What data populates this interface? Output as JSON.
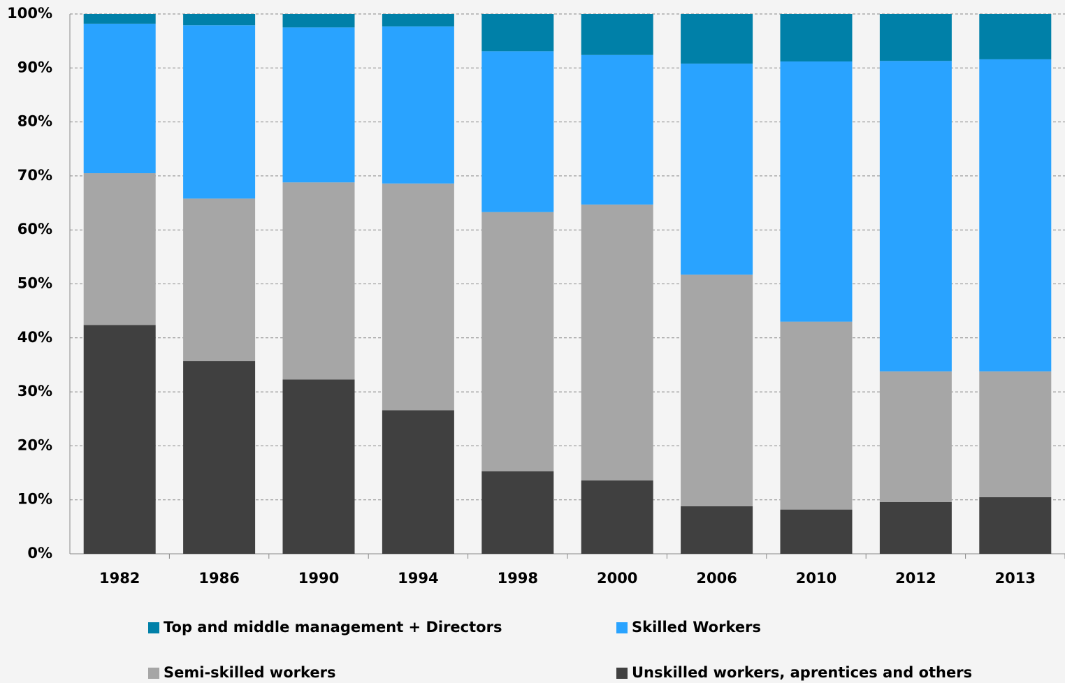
{
  "chart_data": {
    "type": "stacked_bar",
    "categories": [
      "1982",
      "1986",
      "1990",
      "1994",
      "1998",
      "2000",
      "2006",
      "2010",
      "2012",
      "2013"
    ],
    "series": [
      {
        "name": "Top and middle management + Directors",
        "color": "#0080a8",
        "values": [
          1.8,
          2.1,
          2.5,
          2.3,
          6.9,
          7.6,
          9.2,
          8.8,
          8.7,
          8.4
        ]
      },
      {
        "name": "Skilled Workers",
        "color": "#29a3ff",
        "values": [
          27.7,
          32.1,
          28.7,
          29.1,
          29.8,
          27.7,
          39.1,
          48.2,
          57.5,
          57.8
        ]
      },
      {
        "name": "Semi-skilled workers",
        "color": "#a6a6a6",
        "values": [
          28.1,
          30.1,
          36.5,
          42.0,
          48.0,
          51.1,
          42.9,
          34.8,
          24.2,
          23.3
        ]
      },
      {
        "name": "Unskilled workers, aprentices and others",
        "color": "#404040",
        "values": [
          42.4,
          35.7,
          32.3,
          26.6,
          15.3,
          13.6,
          8.8,
          8.2,
          9.6,
          10.5
        ]
      }
    ],
    "stack_order": "bottom_up_from_last",
    "ylim": [
      0,
      100
    ],
    "yticks": [
      {
        "value": 0,
        "label": "0%"
      },
      {
        "value": 10,
        "label": "10%"
      },
      {
        "value": 20,
        "label": "20%"
      },
      {
        "value": 30,
        "label": "30%"
      },
      {
        "value": 40,
        "label": "40%"
      },
      {
        "value": 50,
        "label": "50%"
      },
      {
        "value": 60,
        "label": "60%"
      },
      {
        "value": 70,
        "label": "70%"
      },
      {
        "value": 80,
        "label": "80%"
      },
      {
        "value": 90,
        "label": "90%"
      },
      {
        "value": 100,
        "label": "100%"
      }
    ],
    "grid": true
  }
}
